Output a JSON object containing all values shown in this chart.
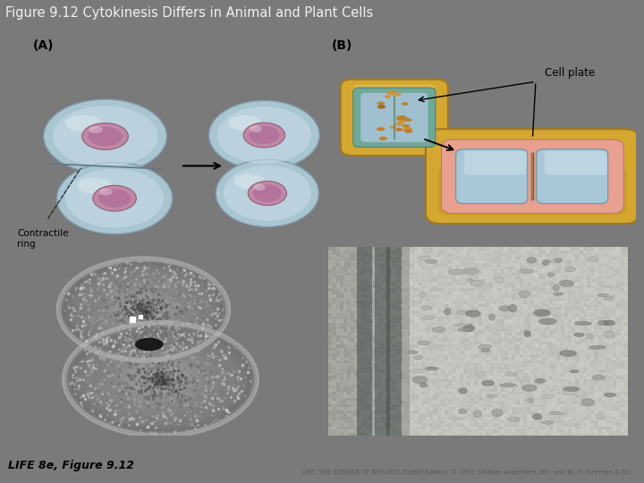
{
  "title": "Figure 9.12 Cytokinesis Differs in Animal and Plant Cells",
  "title_bg_color": "#9B1C1C",
  "title_text_color": "#F0F0F0",
  "title_fontsize": 10.5,
  "fig_bg_color": "#7A7A7A",
  "panel_bg_color": "#F2F2F2",
  "caption_left": "LIFE 8e, Figure 9.12",
  "caption_right": "LIFE: THE SCIENCE OF BIOLOGY, Eighth Edition  © 2007 Sinauer Associates, Inc. and W. H. Freeman & Co.",
  "label_A": "(A)",
  "label_B": "(B)",
  "contractile_ring_label": "Contractile\nring",
  "cell_plate_label": "Cell plate",
  "cell_body_color": "#A8C8D8",
  "cell_inner_color": "#C8DCE8",
  "cell_edge_color": "#7090A8",
  "nucleus_color": "#C088A8",
  "nucleus_edge_color": "#906070",
  "gold_outer": "#D4A830",
  "gold_inner": "#E8C050",
  "pink_layer": "#E8A090",
  "blue_cytoplasm": "#A8C8D8",
  "teal_membrane": "#70A898"
}
